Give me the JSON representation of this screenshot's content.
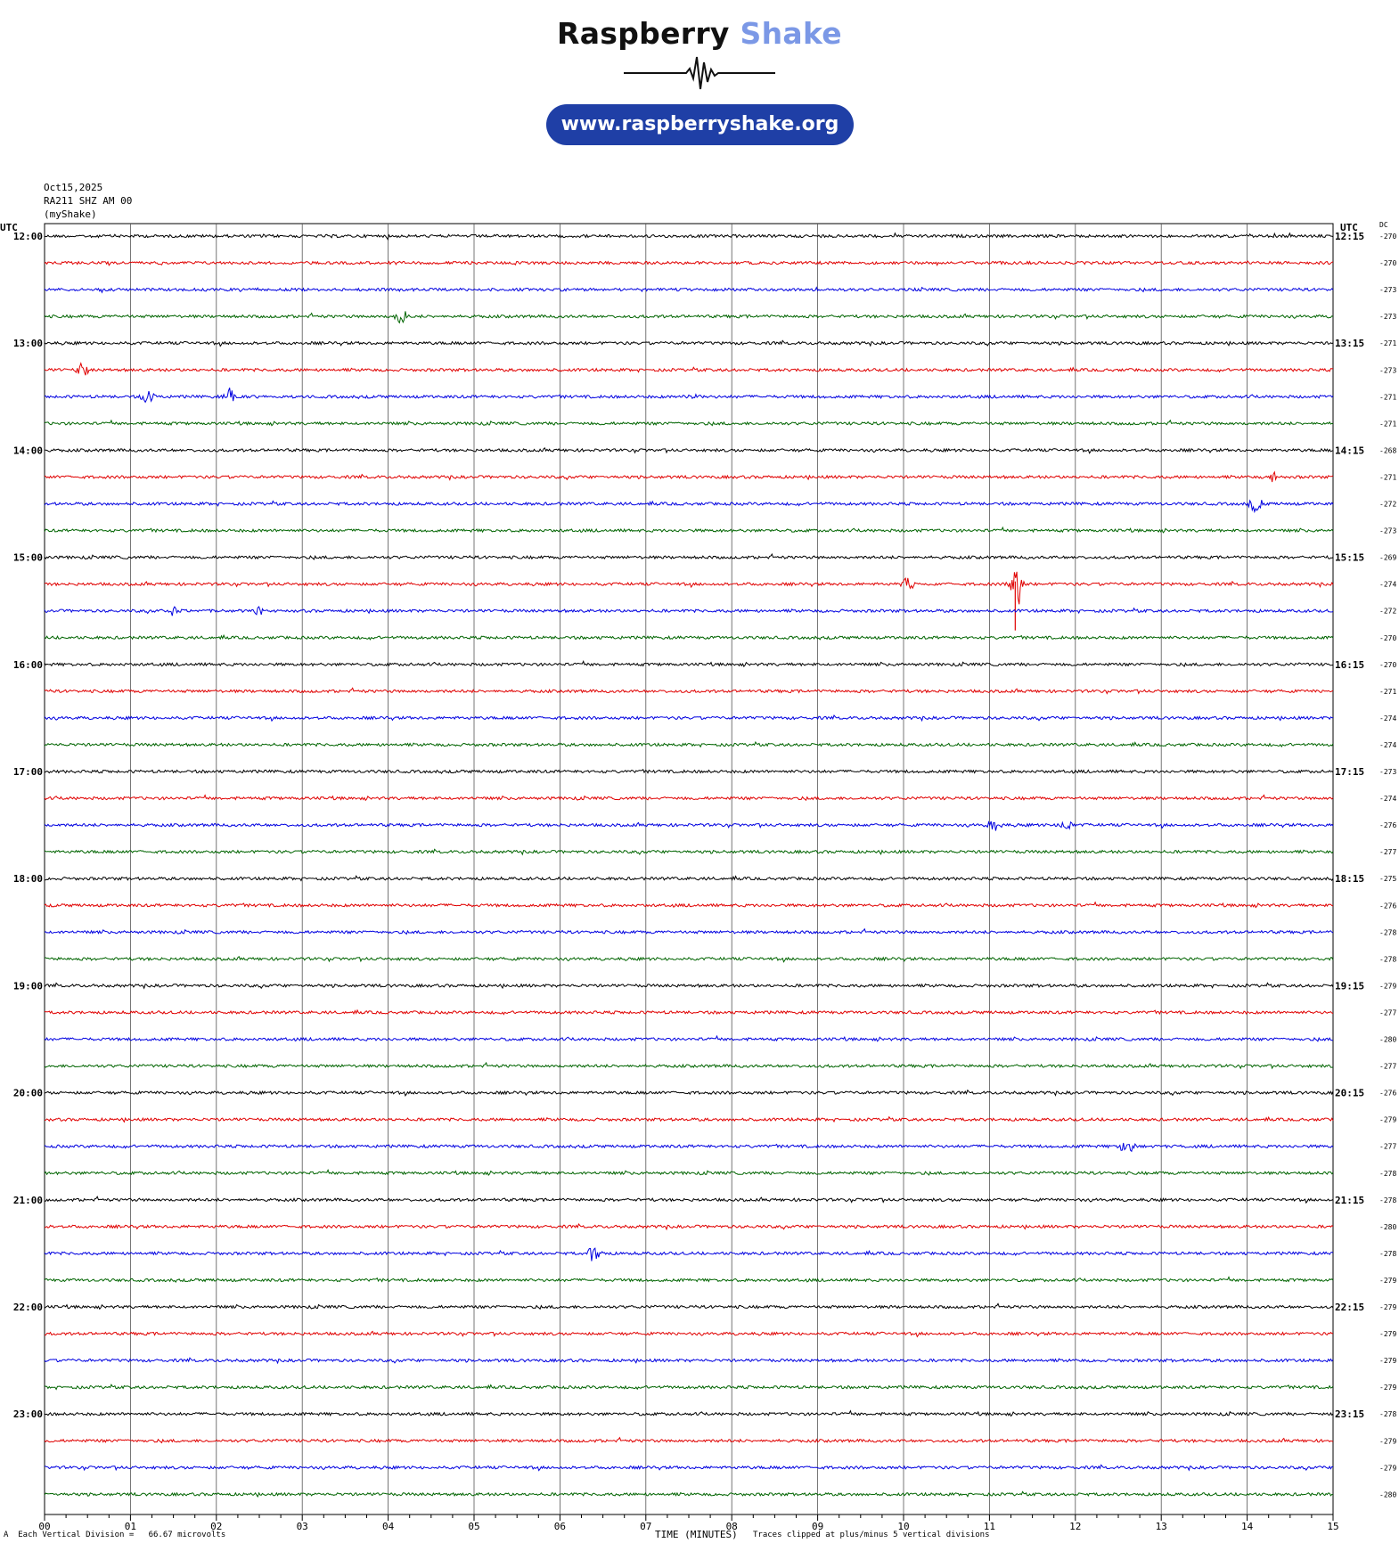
{
  "header": {
    "brand_main": "Raspberry",
    "brand_accent": "Shake",
    "url": "www.raspberryshake.org"
  },
  "meta": {
    "date": "Oct15,2025",
    "station": "RA211 SHZ AM 00",
    "network": "(myShake)"
  },
  "colors": {
    "trace_cycle": [
      "#000000",
      "#e00000",
      "#0000e0",
      "#006400"
    ],
    "grid": "#555555",
    "brand_accent": "#7b98e6",
    "pill": "#1f3fa6"
  },
  "chart_data": {
    "type": "line",
    "subtype": "helicorder",
    "left_axis_title": "UTC",
    "right_axis_title": "UTC",
    "dc_header": "DC",
    "left_labels": [
      "12:00",
      "13:00",
      "14:00",
      "15:00",
      "16:00",
      "17:00",
      "18:00",
      "19:00",
      "20:00",
      "21:00",
      "22:00",
      "23:00"
    ],
    "right_labels": [
      "12:15",
      "13:15",
      "14:15",
      "15:15",
      "16:15",
      "17:15",
      "18:15",
      "19:15",
      "20:15",
      "21:15",
      "22:15",
      "23:15"
    ],
    "dc_values": [
      -270,
      -270,
      -273,
      -273,
      -271,
      -273,
      -271,
      -271,
      -268,
      -271,
      -272,
      -273,
      -269,
      -274,
      -272,
      -270,
      -270,
      -271,
      -274,
      -274,
      -273,
      -274,
      -276,
      -277,
      -275,
      -276,
      -278,
      -278,
      -279,
      -277,
      -280,
      -277,
      -276,
      -279,
      -277,
      -278,
      -278,
      -280,
      -278,
      -279,
      -279,
      -279,
      -279,
      -279,
      -278,
      -279,
      -279,
      -280
    ],
    "x_ticks": [
      "00",
      "01",
      "02",
      "03",
      "04",
      "05",
      "06",
      "07",
      "08",
      "09",
      "10",
      "11",
      "12",
      "13",
      "14",
      "15"
    ],
    "xlim": [
      0,
      15
    ],
    "trace_count": 48,
    "minutes_per_trace": 15,
    "xlabel": "TIME (MINUTES)",
    "scale_note": "Each Vertical Division =   66.67 microvolts",
    "clip_note": "Traces clipped at plus/minus 5 vertical divisions",
    "events": [
      {
        "trace": 3,
        "minute": 4.15,
        "amplitude": 14
      },
      {
        "trace": 5,
        "minute": 0.45,
        "amplitude": 12
      },
      {
        "trace": 6,
        "minute": 1.2,
        "amplitude": 14
      },
      {
        "trace": 6,
        "minute": 2.15,
        "amplitude": 16
      },
      {
        "trace": 6,
        "minute": 7.55,
        "amplitude": 10
      },
      {
        "trace": 9,
        "minute": 14.3,
        "amplitude": 8
      },
      {
        "trace": 10,
        "minute": 14.1,
        "amplitude": 14
      },
      {
        "trace": 13,
        "minute": 10.05,
        "amplitude": 14
      },
      {
        "trace": 13,
        "minute": 11.3,
        "amplitude": 52
      },
      {
        "trace": 14,
        "minute": 1.5,
        "amplitude": 8
      },
      {
        "trace": 14,
        "minute": 2.5,
        "amplitude": 8
      },
      {
        "trace": 22,
        "minute": 11.05,
        "amplitude": 10
      },
      {
        "trace": 22,
        "minute": 11.9,
        "amplitude": 10
      },
      {
        "trace": 34,
        "minute": 12.6,
        "amplitude": 16
      },
      {
        "trace": 38,
        "minute": 6.4,
        "amplitude": 16
      }
    ]
  },
  "footer": {
    "corner_mark": "A"
  }
}
